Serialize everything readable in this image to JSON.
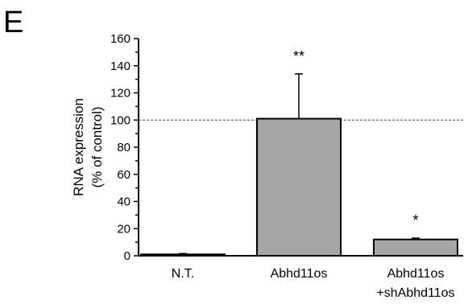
{
  "panel_label": "E",
  "chart_data": {
    "type": "bar",
    "categories": [
      {
        "line1": "N.T.",
        "line2": ""
      },
      {
        "line1": "Abhd11os",
        "line2": ""
      },
      {
        "line1": "Abhd11os",
        "line2": "+shAbhd11os"
      }
    ],
    "values": [
      1,
      101,
      12
    ],
    "errors": [
      0.6,
      33,
      1
    ],
    "significance": [
      "",
      "**",
      "*"
    ],
    "ylabel": [
      "RNA expression",
      "(% of control)"
    ],
    "ylim": [
      0,
      160
    ],
    "yticks": [
      0,
      20,
      40,
      60,
      80,
      100,
      120,
      140,
      160
    ],
    "reference_line": 100,
    "bar_color": "#a6a6a6",
    "grid": false
  }
}
